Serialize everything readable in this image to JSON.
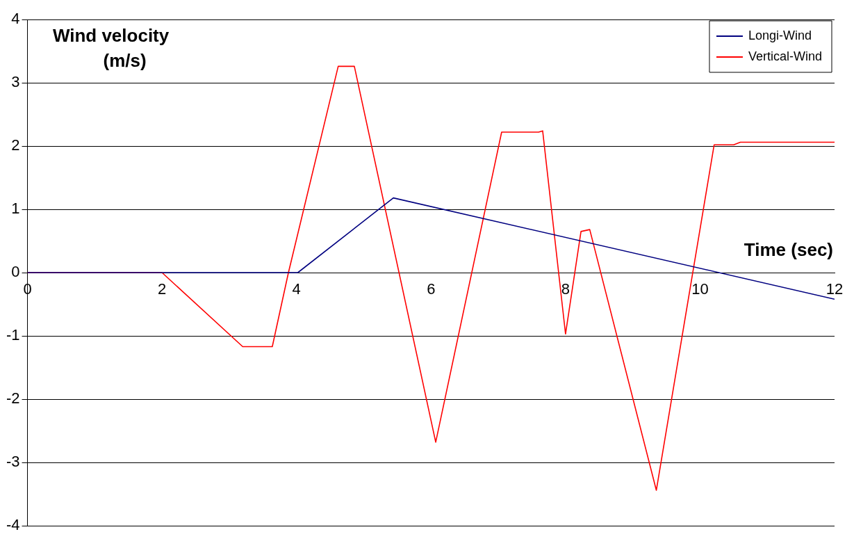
{
  "chart_data": {
    "type": "line",
    "xlabel": "Time (sec)",
    "ylabel": "Wind velocity (m/s)",
    "xlim": [
      0,
      12
    ],
    "xticks": [
      0,
      2,
      4,
      6,
      8,
      10,
      12
    ],
    "ylim": [
      -4,
      4
    ],
    "yticks": [
      -4,
      -3,
      -2,
      -1,
      0,
      1,
      2,
      3,
      4
    ],
    "grid": "y",
    "legend": "top right",
    "marker": "none",
    "line_style": "solid",
    "series": [
      {
        "name": "Longi-Wind",
        "color": "#000080",
        "x": [
          0,
          4.02,
          5.44,
          12
        ],
        "values": [
          0,
          0,
          1.18,
          -0.42
        ]
      },
      {
        "name": "Vertical-Wind",
        "color": "#ff0000",
        "x": [
          0,
          2,
          3.2,
          3.64,
          3.88,
          4.62,
          4.86,
          6.07,
          7.05,
          7.6,
          7.66,
          8.0,
          8.23,
          8.36,
          9.35,
          10.21,
          10.5,
          10.6,
          12
        ],
        "values": [
          0,
          0,
          -1.17,
          -1.17,
          0,
          3.26,
          3.26,
          -2.68,
          2.22,
          2.22,
          2.24,
          -0.97,
          0.65,
          0.68,
          -3.44,
          2.02,
          2.02,
          2.06,
          2.06
        ]
      }
    ]
  }
}
